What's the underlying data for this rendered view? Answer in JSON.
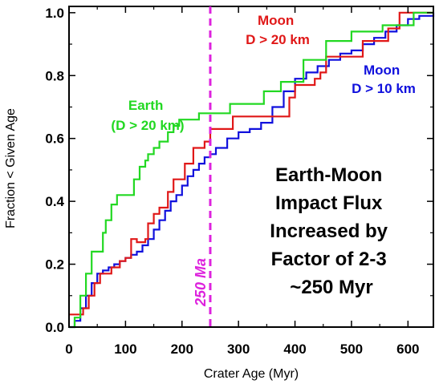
{
  "chart_data": {
    "type": "line",
    "title": "",
    "xlabel": "Crater Age (Myr)",
    "ylabel": "Fraction < Given Age",
    "xlim": [
      0,
      645
    ],
    "ylim": [
      0,
      1.02
    ],
    "x_ticks": [
      0,
      100,
      200,
      300,
      400,
      500,
      600
    ],
    "y_ticks": [
      0.0,
      0.2,
      0.4,
      0.6,
      0.8,
      1.0
    ],
    "y_tick_labels": [
      "0.0",
      "0.2",
      "0.4",
      "0.6",
      "0.8",
      "1.0"
    ],
    "grid": false,
    "series": [
      {
        "key": "moon20",
        "color": "#e01818",
        "x": [
          0,
          15,
          25,
          35,
          45,
          55,
          75,
          90,
          100,
          110,
          120,
          135,
          140,
          150,
          160,
          175,
          185,
          195,
          205,
          220,
          230,
          240,
          250,
          285,
          290,
          315,
          380,
          390,
          400,
          420,
          435,
          445,
          455,
          470,
          520,
          555,
          565,
          585,
          605,
          645
        ],
        "y": [
          0.04,
          0.04,
          0.06,
          0.1,
          0.14,
          0.17,
          0.19,
          0.21,
          0.22,
          0.28,
          0.27,
          0.28,
          0.33,
          0.36,
          0.38,
          0.43,
          0.47,
          0.47,
          0.52,
          0.57,
          0.57,
          0.59,
          0.63,
          0.63,
          0.67,
          0.67,
          0.67,
          0.73,
          0.77,
          0.77,
          0.79,
          0.81,
          0.86,
          0.86,
          0.91,
          0.91,
          0.95,
          1.0,
          1.0,
          1.0
        ]
      },
      {
        "key": "moon10",
        "color": "#1010dd",
        "x": [
          0,
          10,
          20,
          30,
          40,
          50,
          60,
          70,
          80,
          90,
          100,
          110,
          120,
          130,
          140,
          150,
          160,
          170,
          180,
          190,
          200,
          210,
          220,
          230,
          240,
          250,
          260,
          280,
          300,
          320,
          340,
          360,
          380,
          400,
          420,
          440,
          460,
          480,
          500,
          520,
          540,
          560,
          580,
          600,
          620,
          645
        ],
        "y": [
          0.0,
          0.02,
          0.06,
          0.1,
          0.14,
          0.17,
          0.18,
          0.19,
          0.2,
          0.21,
          0.22,
          0.23,
          0.24,
          0.26,
          0.28,
          0.31,
          0.34,
          0.37,
          0.4,
          0.42,
          0.45,
          0.48,
          0.5,
          0.52,
          0.54,
          0.55,
          0.57,
          0.6,
          0.62,
          0.63,
          0.65,
          0.7,
          0.75,
          0.79,
          0.81,
          0.83,
          0.85,
          0.87,
          0.88,
          0.9,
          0.92,
          0.94,
          0.96,
          0.98,
          0.99,
          1.0
        ]
      },
      {
        "key": "earth20",
        "color": "#22d822",
        "x": [
          0,
          10,
          20,
          30,
          40,
          60,
          65,
          75,
          85,
          115,
          125,
          135,
          140,
          150,
          160,
          175,
          185,
          195,
          205,
          230,
          250,
          285,
          315,
          345,
          375,
          395,
          415,
          455,
          500,
          555,
          610,
          645
        ],
        "y": [
          0.0,
          0.03,
          0.1,
          0.17,
          0.24,
          0.3,
          0.34,
          0.39,
          0.42,
          0.47,
          0.51,
          0.53,
          0.55,
          0.57,
          0.59,
          0.62,
          0.64,
          0.66,
          0.66,
          0.68,
          0.68,
          0.71,
          0.71,
          0.75,
          0.78,
          0.78,
          0.85,
          0.91,
          0.94,
          0.96,
          1.0,
          1.0
        ]
      }
    ],
    "vline": {
      "x": 250,
      "label": "250 Ma",
      "color": "#dd22dd"
    },
    "annotations": [
      {
        "key": "earth",
        "color": "#22d822",
        "lines": [
          "Earth",
          "(D > 20 km)"
        ]
      },
      {
        "key": "moon20",
        "color": "#e01818",
        "lines": [
          "Moon",
          "D > 20 km"
        ]
      },
      {
        "key": "moon10",
        "color": "#1010dd",
        "lines": [
          "Moon",
          "D > 10 km"
        ]
      }
    ],
    "big_text": [
      "Earth-Moon",
      "Impact Flux",
      "Increased by",
      "Factor of 2-3",
      "~250 Myr"
    ]
  }
}
